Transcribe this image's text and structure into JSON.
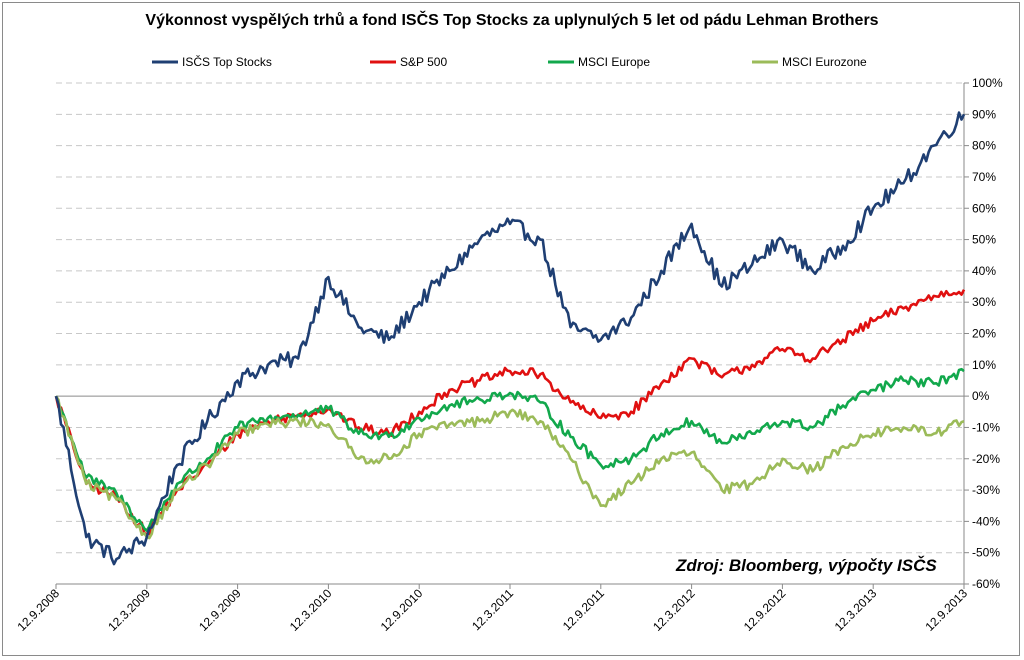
{
  "title": "Výkonnost vyspělých trhů a fond ISČS Top Stocks za uplynulých 5 let od pádu Lehman Brothers",
  "source_note": "Zdroj: Bloomberg, výpočty ISČS",
  "chart_data": {
    "type": "line",
    "title": "Výkonnost vyspělých trhů a fond ISČS Top Stocks za uplynulých 5 let od pádu Lehman Brothers",
    "x_ticks": [
      "12.9.2008",
      "12.3.2009",
      "12.9.2009",
      "12.3.2010",
      "12.9.2010",
      "12.3.2011",
      "12.9.2011",
      "12.3.2012",
      "12.9.2012",
      "12.3.2013",
      "12.9.2013"
    ],
    "y_ticks": [
      "100%",
      "90%",
      "80%",
      "70%",
      "60%",
      "50%",
      "40%",
      "30%",
      "20%",
      "10%",
      "0%",
      "-10%",
      "-20%",
      "-30%",
      "-40%",
      "-50%",
      "-60%"
    ],
    "ylim": [
      -60,
      100
    ],
    "y_unit": "%",
    "grid": "horizontal dashed",
    "legend_position": "top",
    "x": [
      "12.9.2008",
      "12.11.2008",
      "12.1.2009",
      "12.3.2009",
      "12.5.2009",
      "12.7.2009",
      "12.9.2009",
      "12.11.2009",
      "12.1.2010",
      "12.3.2010",
      "12.5.2010",
      "12.7.2010",
      "12.9.2010",
      "12.11.2010",
      "12.1.2011",
      "12.3.2011",
      "12.5.2011",
      "12.7.2011",
      "12.9.2011",
      "12.11.2011",
      "12.1.2012",
      "12.3.2012",
      "12.5.2012",
      "12.7.2012",
      "12.9.2012",
      "12.11.2012",
      "12.1.2013",
      "12.3.2013",
      "12.5.2013",
      "12.7.2013",
      "12.9.2013"
    ],
    "series": [
      {
        "name": "ISČS Top Stocks",
        "color": "#1f3f73",
        "values": [
          0,
          -45,
          -52,
          -45,
          -22,
          -8,
          5,
          10,
          12,
          38,
          22,
          18,
          30,
          40,
          50,
          55,
          50,
          22,
          18,
          25,
          40,
          55,
          35,
          42,
          50,
          40,
          48,
          60,
          68,
          80,
          90
        ]
      },
      {
        "name": "S&P 500",
        "color": "#e01010",
        "values": [
          0,
          -28,
          -32,
          -44,
          -30,
          -22,
          -12,
          -8,
          -6,
          -4,
          -10,
          -12,
          -5,
          2,
          5,
          8,
          7,
          -2,
          -7,
          -5,
          4,
          12,
          6,
          10,
          15,
          12,
          18,
          24,
          28,
          32,
          34
        ]
      },
      {
        "name": "MSCI Europe",
        "color": "#12a84c",
        "values": [
          0,
          -26,
          -31,
          -43,
          -28,
          -20,
          -10,
          -7,
          -6,
          -4,
          -12,
          -13,
          -7,
          -3,
          -1,
          1,
          -2,
          -13,
          -22,
          -20,
          -12,
          -8,
          -15,
          -12,
          -8,
          -10,
          -3,
          2,
          5,
          4,
          8
        ]
      },
      {
        "name": "MSCI Eurozone",
        "color": "#9bbb59",
        "values": [
          0,
          -28,
          -33,
          -45,
          -30,
          -22,
          -12,
          -9,
          -8,
          -9,
          -20,
          -20,
          -12,
          -9,
          -8,
          -5,
          -8,
          -20,
          -35,
          -28,
          -20,
          -18,
          -30,
          -28,
          -20,
          -24,
          -16,
          -12,
          -10,
          -12,
          -8
        ]
      }
    ]
  }
}
